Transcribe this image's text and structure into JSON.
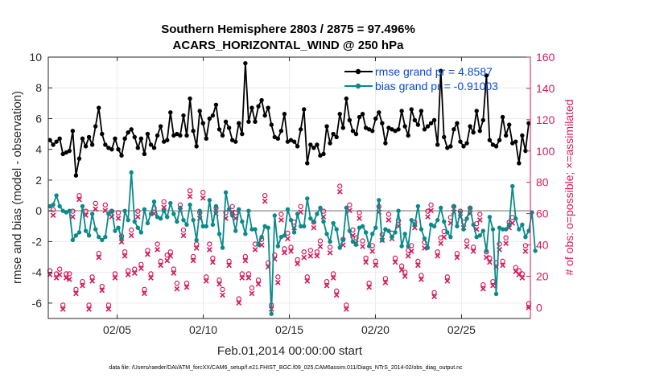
{
  "chart_data": {
    "type": "line",
    "title_line1": "Southern Hemisphere 2803 / 2875 = 97.496%",
    "title_line2": "ACARS_HORIZONTAL_WIND @ 250 hPa",
    "xlabel": "Feb.01,2014 00:00:00 start",
    "ylabel_left": "rmse and bias (model - observation)",
    "ylabel_right": "# of obs: o=possible; ×=assimilated",
    "footnote": "data file: /Users/raeder/DAI/ATM_forcXX/CAM6_setup/f.e21.FHIST_BGC.f09_025.CAM6assim.011/Diags_NTrS_2014-02/obs_diag_output.nc",
    "xlim": [
      1,
      29
    ],
    "ylim_left": [
      -7,
      10
    ],
    "ylim_right": [
      -7,
      160
    ],
    "x_ticks": [
      5,
      10,
      15,
      20,
      25
    ],
    "x_tick_labels": [
      "02/05",
      "02/10",
      "02/15",
      "02/20",
      "02/25"
    ],
    "y_ticks_left": [
      -6,
      -4,
      -2,
      0,
      2,
      4,
      6,
      8,
      10
    ],
    "y_ticks_right": [
      0,
      20,
      40,
      60,
      80,
      100,
      120,
      140,
      160
    ],
    "grid": true,
    "legend_position": "top-right",
    "colors": {
      "rmse": "#000000",
      "bias": "#0a8a8a",
      "obs": "#d6195c",
      "zero": "#b3b3b3",
      "legend_text": "#0a4bd6"
    },
    "series": [
      {
        "name": "rmse grand pr = 4.8587",
        "axis": "left",
        "values": [
          4.6,
          4.3,
          4.5,
          4.7,
          3.7,
          3.8,
          3.9,
          5.2,
          2.3,
          3.4,
          4.7,
          4.2,
          4.8,
          4.3,
          5.5,
          6.7,
          5.0,
          4.3,
          4.1,
          4.0,
          4.7,
          4.0,
          3.6,
          4.7,
          5.1,
          5.3,
          4.8,
          4.1,
          4.7,
          3.7,
          5.0,
          4.3,
          4.1,
          4.9,
          5.5,
          4.5,
          4.6,
          6.4,
          4.9,
          5.0,
          4.9,
          6.2,
          4.9,
          7.3,
          5.2,
          4.2,
          6.5,
          5.7,
          4.7,
          6.0,
          6.2,
          6.9,
          5.3,
          4.9,
          5.8,
          5.4,
          4.6,
          4.5,
          5.7,
          5.0,
          9.6,
          5.8,
          6.7,
          5.8,
          6.8,
          7.2,
          6.2,
          6.7,
          5.6,
          4.8,
          4.7,
          5.2,
          6.3,
          4.5,
          4.6,
          4.5,
          4.2,
          5.3,
          6.6,
          3.1,
          4.3,
          4.1,
          4.3,
          3.6,
          3.7,
          5.5,
          4.4,
          5.0,
          4.8,
          6.3,
          5.4,
          7.3,
          5.9,
          5.2,
          5.0,
          6.1,
          6.3,
          5.4,
          5.3,
          5.2,
          6.0,
          6.4,
          5.7,
          4.4,
          5.4,
          5.3,
          5.2,
          5.3,
          6.5,
          5.5,
          4.9,
          6.6,
          5.9,
          5.6,
          6.5,
          5.3,
          5.5,
          5.7,
          5.9,
          4.3,
          9.1,
          4.8,
          4.1,
          4.2,
          5.3,
          5.7,
          4.5,
          4.2,
          4.4,
          5.5,
          5.1,
          6.5,
          5.2,
          5.9,
          8.8,
          4.6,
          4.3,
          4.2,
          4.6,
          6.1,
          4.9,
          5.6,
          4.4,
          4.5,
          3.1,
          4.9,
          3.9,
          5.7
        ]
      },
      {
        "name": "bias grand pr = -0.91003",
        "axis": "left",
        "values": [
          0.3,
          0.4,
          1.0,
          0.3,
          0.0,
          -0.1,
          0.0,
          -1.9,
          -1.6,
          -1.4,
          0.3,
          -1.3,
          -1.6,
          -0.2,
          -1.2,
          -1.7,
          -1.9,
          -1.7,
          -0.2,
          0.0,
          -1.3,
          -1.1,
          -1.8,
          0.0,
          -0.6,
          2.5,
          -0.7,
          -1.1,
          -1.4,
          0.1,
          -0.8,
          -0.2,
          0.6,
          -0.4,
          -0.5,
          0.0,
          -0.4,
          0.5,
          -0.2,
          -0.7,
          0.2,
          -0.6,
          -0.9,
          0.4,
          -0.6,
          -1.9,
          0.0,
          -1.0,
          -1.0,
          0.7,
          -0.9,
          0.3,
          -1.5,
          -2.4,
          1.2,
          0.1,
          -0.3,
          -1.3,
          0.1,
          -0.7,
          -1.5,
          0.0,
          -1.2,
          -1.2,
          -2.2,
          -1.7,
          -1.0,
          -1.1,
          -6.7,
          -0.3,
          -2.3,
          -1.7,
          -1.6,
          0.1,
          -0.6,
          -1.4,
          -0.2,
          -1.0,
          -1.0,
          0.8,
          -0.5,
          -0.7,
          -0.2,
          0.2,
          -0.7,
          -1.5,
          -2.0,
          -0.8,
          -1.2,
          -2.4,
          -1.9,
          0.2,
          -1.3,
          -2.0,
          -2.2,
          -1.1,
          -1.0,
          -1.4,
          -2.3,
          -1.5,
          -1.1,
          0.7,
          -1.9,
          -1.2,
          -1.3,
          -1.7,
          -1.4,
          0.0,
          -2.3,
          -1.5,
          -2.3,
          -0.6,
          -0.9,
          0.3,
          -1.2,
          -1.8,
          -2.4,
          -0.9,
          -1.0,
          -0.6,
          0.2,
          -0.7,
          -1.4,
          -1.7,
          0.3,
          -1.0,
          -0.1,
          -1.2,
          -0.5,
          0.2,
          -0.9,
          -1.7,
          -1.6,
          -1.3,
          -2.6,
          -0.4,
          -1.2,
          -5.4,
          -1.1,
          -1.2,
          -1.2,
          -0.9,
          1.6,
          -0.5,
          -1.2,
          -0.9,
          -1.7,
          -1.3,
          -0.1,
          -2.6
        ]
      },
      {
        "name": "obs possible",
        "axis": "right",
        "marker": "o",
        "values": [
          22,
          61,
          20,
          23,
          0,
          20,
          20,
          60,
          10,
          70,
          15,
          60,
          0,
          18,
          65,
          33,
          12,
          64,
          0,
          60,
          20,
          59,
          44,
          34,
          22,
          48,
          23,
          60,
          26,
          10,
          35,
          20,
          62,
          39,
          28,
          66,
          32,
          34,
          23,
          14,
          64,
          48,
          14,
          73,
          31,
          39,
          59,
          72,
          18,
          39,
          30,
          62,
          16,
          10,
          59,
          28,
          63,
          59,
          4,
          20,
          31,
          20,
          11,
          39,
          16,
          42,
          70,
          27,
          0,
          32,
          18,
          58,
          36,
          46,
          37,
          53,
          29,
          63,
          34,
          18,
          35,
          53,
          34,
          41,
          60,
          15,
          37,
          20,
          9,
          76,
          42,
          0,
          64,
          48,
          43,
          59,
          41,
          30,
          14,
          38,
          28,
          63,
          45,
          17,
          58,
          46,
          30,
          54,
          25,
          21,
          35,
          38,
          53,
          28,
          19,
          40,
          60,
          64,
          8,
          34,
          43,
          47,
          18,
          56,
          63,
          33,
          60,
          53,
          41,
          62,
          37,
          52,
          58,
          13,
          34,
          30,
          15,
          27,
          39,
          28,
          43,
          53,
          56,
          24,
          22,
          20,
          38,
          1
        ]
      },
      {
        "name": "obs assimilated",
        "axis": "right",
        "marker": "x",
        "values": [
          22,
          60,
          20,
          22,
          0,
          20,
          19,
          59,
          10,
          70,
          15,
          60,
          0,
          18,
          64,
          33,
          12,
          63,
          0,
          59,
          20,
          58,
          43,
          34,
          22,
          47,
          23,
          59,
          26,
          10,
          35,
          20,
          61,
          38,
          28,
          65,
          31,
          34,
          23,
          13,
          63,
          47,
          14,
          72,
          31,
          39,
          58,
          71,
          18,
          38,
          30,
          61,
          16,
          9,
          58,
          28,
          62,
          58,
          4,
          20,
          31,
          20,
          10,
          38,
          16,
          41,
          69,
          27,
          0,
          32,
          17,
          57,
          36,
          45,
          37,
          52,
          29,
          62,
          33,
          18,
          34,
          52,
          34,
          40,
          59,
          15,
          36,
          20,
          9,
          75,
          41,
          0,
          63,
          47,
          42,
          58,
          40,
          30,
          14,
          37,
          28,
          62,
          44,
          17,
          57,
          45,
          30,
          53,
          25,
          21,
          34,
          37,
          52,
          28,
          19,
          39,
          59,
          63,
          8,
          34,
          42,
          46,
          18,
          55,
          62,
          33,
          59,
          52,
          40,
          61,
          37,
          51,
          57,
          13,
          33,
          30,
          15,
          27,
          38,
          28,
          42,
          52,
          55,
          24,
          22,
          20,
          37,
          1
        ]
      }
    ]
  }
}
